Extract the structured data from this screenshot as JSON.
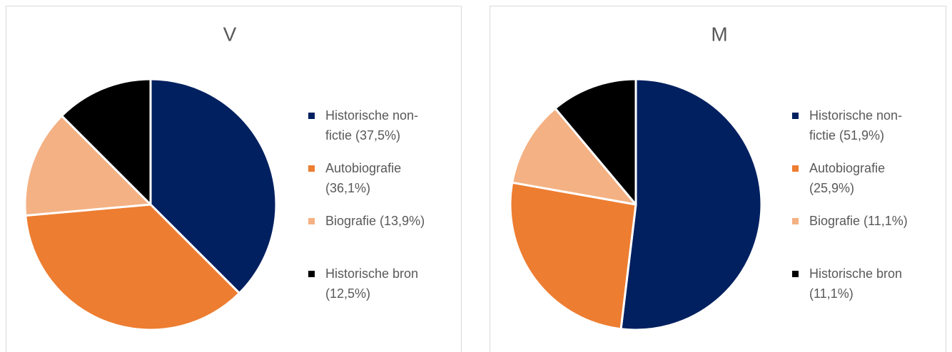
{
  "chart_data": [
    {
      "type": "pie",
      "title": "V",
      "categories": [
        "Historische non-fictie (37,5%)",
        "Autobiografie (36,1%)",
        "Biografie (13,9%)",
        "Historische bron (12,5%)"
      ],
      "values": [
        37.5,
        36.1,
        13.9,
        12.5
      ],
      "colors": [
        "#002060",
        "#ed7d31",
        "#f4b183",
        "#000000"
      ]
    },
    {
      "type": "pie",
      "title": "M",
      "categories": [
        "Historische non-fictie (51,9%)",
        "Autobiografie (25,9%)",
        "Biografie (11,1%)",
        "Historische bron (11,1%)"
      ],
      "values": [
        51.9,
        25.9,
        11.1,
        11.1
      ],
      "colors": [
        "#002060",
        "#ed7d31",
        "#f4b183",
        "#000000"
      ]
    }
  ]
}
